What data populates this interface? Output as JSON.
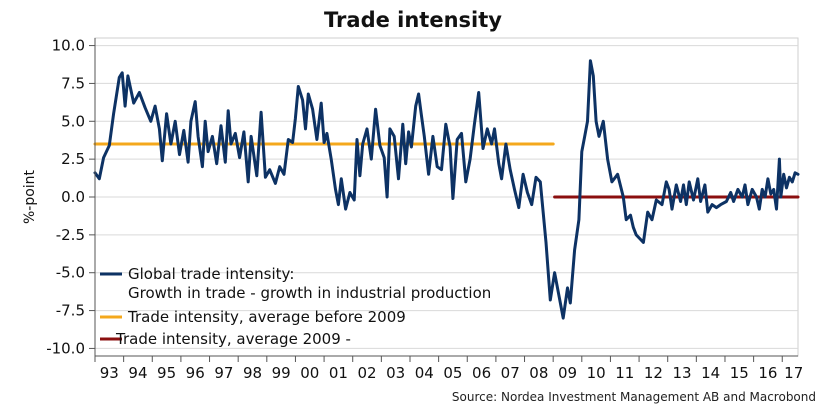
{
  "chart_data": {
    "type": "line",
    "title": "Trade intensity",
    "ylabel": "%-point",
    "xlabel": "",
    "source": "Source: Nordea Investment Management AB and Macrobond",
    "ylim": [
      -10.5,
      10.5
    ],
    "xlim": [
      1993.0,
      2017.55
    ],
    "yticks": [
      10.0,
      7.5,
      5.0,
      2.5,
      0.0,
      -2.5,
      -5.0,
      -7.5,
      -10.0
    ],
    "ytick_labels": [
      "10.0",
      "7.5",
      "5.0",
      "2.5",
      "0.0",
      "-2.5",
      "-5.0",
      "-7.5",
      "-10.0"
    ],
    "xtick_labels": [
      "93",
      "94",
      "95",
      "96",
      "97",
      "98",
      "99",
      "00",
      "01",
      "02",
      "03",
      "04",
      "05",
      "06",
      "07",
      "08",
      "09",
      "10",
      "11",
      "12",
      "13",
      "14",
      "15",
      "16",
      "17"
    ],
    "grid": "horizontal",
    "legend_position": "bottom-left",
    "colors": {
      "trade": "#0d3264",
      "avg_before": "#f4a81c",
      "avg_after": "#8b0f0f",
      "grid": "#d9d9d9"
    },
    "legend": [
      {
        "label_lines": [
          "Global trade intensity:",
          "Growth in trade - growth in industrial production"
        ],
        "color": "#0d3264"
      },
      {
        "label_lines": [
          "Trade intensity, average before 2009"
        ],
        "color": "#f4a81c"
      },
      {
        "label_lines": [
          "Trade intensity, average 2009 -"
        ],
        "color": "#8b0f0f"
      }
    ],
    "series": [
      {
        "name": "Global trade intensity: Growth in trade - growth in industrial production",
        "color": "#0d3264",
        "points": [
          [
            1993.0,
            1.6
          ],
          [
            1993.15,
            1.2
          ],
          [
            1993.3,
            2.6
          ],
          [
            1993.5,
            3.4
          ],
          [
            1993.65,
            5.5
          ],
          [
            1993.85,
            7.9
          ],
          [
            1993.95,
            8.2
          ],
          [
            1994.05,
            6.0
          ],
          [
            1994.15,
            8.0
          ],
          [
            1994.35,
            6.2
          ],
          [
            1994.55,
            6.9
          ],
          [
            1994.75,
            5.9
          ],
          [
            1994.95,
            5.0
          ],
          [
            1995.1,
            6.0
          ],
          [
            1995.25,
            4.5
          ],
          [
            1995.35,
            2.4
          ],
          [
            1995.5,
            5.5
          ],
          [
            1995.65,
            3.5
          ],
          [
            1995.8,
            5.0
          ],
          [
            1995.95,
            2.8
          ],
          [
            1996.1,
            4.4
          ],
          [
            1996.25,
            2.3
          ],
          [
            1996.35,
            5.0
          ],
          [
            1996.5,
            6.3
          ],
          [
            1996.6,
            4.0
          ],
          [
            1996.75,
            2.0
          ],
          [
            1996.85,
            5.0
          ],
          [
            1996.95,
            3.0
          ],
          [
            1997.1,
            4.0
          ],
          [
            1997.25,
            2.2
          ],
          [
            1997.4,
            4.7
          ],
          [
            1997.55,
            2.3
          ],
          [
            1997.65,
            5.7
          ],
          [
            1997.75,
            3.5
          ],
          [
            1997.9,
            4.2
          ],
          [
            1998.05,
            2.6
          ],
          [
            1998.2,
            4.3
          ],
          [
            1998.35,
            1.0
          ],
          [
            1998.45,
            4.0
          ],
          [
            1998.65,
            1.4
          ],
          [
            1998.8,
            5.6
          ],
          [
            1998.95,
            1.3
          ],
          [
            1999.1,
            1.8
          ],
          [
            1999.3,
            0.9
          ],
          [
            1999.45,
            2.0
          ],
          [
            1999.6,
            1.5
          ],
          [
            1999.75,
            3.8
          ],
          [
            1999.9,
            3.6
          ],
          [
            2000.0,
            5.2
          ],
          [
            2000.1,
            7.3
          ],
          [
            2000.25,
            6.4
          ],
          [
            2000.35,
            4.5
          ],
          [
            2000.45,
            6.8
          ],
          [
            2000.6,
            5.8
          ],
          [
            2000.75,
            3.8
          ],
          [
            2000.9,
            6.2
          ],
          [
            2001.0,
            3.6
          ],
          [
            2001.1,
            4.2
          ],
          [
            2001.25,
            2.5
          ],
          [
            2001.4,
            0.5
          ],
          [
            2001.5,
            -0.5
          ],
          [
            2001.6,
            1.2
          ],
          [
            2001.75,
            -0.8
          ],
          [
            2001.9,
            0.3
          ],
          [
            2002.05,
            -0.2
          ],
          [
            2002.15,
            3.8
          ],
          [
            2002.25,
            1.4
          ],
          [
            2002.35,
            3.5
          ],
          [
            2002.5,
            4.5
          ],
          [
            2002.65,
            2.5
          ],
          [
            2002.8,
            5.8
          ],
          [
            2002.95,
            3.4
          ],
          [
            2003.1,
            2.6
          ],
          [
            2003.2,
            0.0
          ],
          [
            2003.3,
            4.5
          ],
          [
            2003.45,
            4.0
          ],
          [
            2003.6,
            1.2
          ],
          [
            2003.75,
            4.8
          ],
          [
            2003.85,
            2.2
          ],
          [
            2003.95,
            4.3
          ],
          [
            2004.05,
            3.3
          ],
          [
            2004.2,
            6.0
          ],
          [
            2004.3,
            6.8
          ],
          [
            2004.4,
            5.4
          ],
          [
            2004.5,
            4.0
          ],
          [
            2004.65,
            1.5
          ],
          [
            2004.8,
            4.0
          ],
          [
            2004.95,
            2.0
          ],
          [
            2005.1,
            1.8
          ],
          [
            2005.25,
            4.8
          ],
          [
            2005.4,
            3.3
          ],
          [
            2005.5,
            -0.1
          ],
          [
            2005.65,
            3.8
          ],
          [
            2005.8,
            4.2
          ],
          [
            2005.95,
            1.0
          ],
          [
            2006.1,
            2.5
          ],
          [
            2006.25,
            4.8
          ],
          [
            2006.4,
            6.9
          ],
          [
            2006.55,
            3.2
          ],
          [
            2006.7,
            4.5
          ],
          [
            2006.85,
            3.5
          ],
          [
            2006.95,
            4.5
          ],
          [
            2007.1,
            2.2
          ],
          [
            2007.2,
            1.2
          ],
          [
            2007.35,
            3.5
          ],
          [
            2007.5,
            1.8
          ],
          [
            2007.65,
            0.5
          ],
          [
            2007.8,
            -0.7
          ],
          [
            2007.95,
            1.5
          ],
          [
            2008.1,
            0.3
          ],
          [
            2008.25,
            -0.5
          ],
          [
            2008.4,
            1.3
          ],
          [
            2008.55,
            1.0
          ],
          [
            2008.75,
            -3.0
          ],
          [
            2008.9,
            -6.8
          ],
          [
            2009.05,
            -5.0
          ],
          [
            2009.2,
            -6.5
          ],
          [
            2009.35,
            -8.0
          ],
          [
            2009.5,
            -6.0
          ],
          [
            2009.6,
            -7.0
          ],
          [
            2009.75,
            -3.5
          ],
          [
            2009.9,
            -1.5
          ],
          [
            2010.0,
            3.0
          ],
          [
            2010.1,
            4.0
          ],
          [
            2010.2,
            5.0
          ],
          [
            2010.3,
            9.0
          ],
          [
            2010.4,
            8.0
          ],
          [
            2010.5,
            5.0
          ],
          [
            2010.6,
            4.0
          ],
          [
            2010.75,
            5.0
          ],
          [
            2010.9,
            2.5
          ],
          [
            2011.05,
            1.0
          ],
          [
            2011.25,
            1.5
          ],
          [
            2011.45,
            0.0
          ],
          [
            2011.55,
            -1.5
          ],
          [
            2011.7,
            -1.2
          ],
          [
            2011.8,
            -2.0
          ],
          [
            2011.9,
            -2.5
          ],
          [
            2012.05,
            -2.8
          ],
          [
            2012.15,
            -3.0
          ],
          [
            2012.3,
            -1.0
          ],
          [
            2012.45,
            -1.5
          ],
          [
            2012.6,
            -0.2
          ],
          [
            2012.8,
            -0.5
          ],
          [
            2012.95,
            1.0
          ],
          [
            2013.05,
            0.5
          ],
          [
            2013.15,
            -0.8
          ],
          [
            2013.3,
            0.8
          ],
          [
            2013.45,
            -0.3
          ],
          [
            2013.55,
            0.8
          ],
          [
            2013.65,
            -0.5
          ],
          [
            2013.75,
            1.0
          ],
          [
            2013.9,
            -0.2
          ],
          [
            2014.05,
            1.2
          ],
          [
            2014.15,
            -0.3
          ],
          [
            2014.3,
            0.8
          ],
          [
            2014.4,
            -1.0
          ],
          [
            2014.55,
            -0.5
          ],
          [
            2014.7,
            -0.7
          ],
          [
            2014.85,
            -0.5
          ],
          [
            2015.05,
            -0.3
          ],
          [
            2015.2,
            0.3
          ],
          [
            2015.3,
            -0.3
          ],
          [
            2015.45,
            0.5
          ],
          [
            2015.6,
            0.0
          ],
          [
            2015.7,
            0.8
          ],
          [
            2015.8,
            -0.5
          ],
          [
            2015.95,
            0.5
          ],
          [
            2016.1,
            0.0
          ],
          [
            2016.2,
            -0.8
          ],
          [
            2016.3,
            0.5
          ],
          [
            2016.4,
            0.0
          ],
          [
            2016.5,
            1.2
          ],
          [
            2016.6,
            0.2
          ],
          [
            2016.7,
            0.5
          ],
          [
            2016.8,
            -0.8
          ],
          [
            2016.9,
            2.5
          ],
          [
            2016.95,
            0.0
          ],
          [
            2017.05,
            1.5
          ],
          [
            2017.15,
            0.6
          ],
          [
            2017.25,
            1.3
          ],
          [
            2017.35,
            1.0
          ],
          [
            2017.45,
            1.6
          ],
          [
            2017.55,
            1.5
          ]
        ]
      },
      {
        "name": "Trade intensity, average before 2009",
        "color": "#f4a81c",
        "points": [
          [
            1993.0,
            3.5
          ],
          [
            2009.0,
            3.5
          ]
        ]
      },
      {
        "name": "Trade intensity, average 2009 -",
        "color": "#8b0f0f",
        "points": [
          [
            2009.05,
            0.0
          ],
          [
            2017.55,
            0.0
          ]
        ]
      }
    ]
  }
}
